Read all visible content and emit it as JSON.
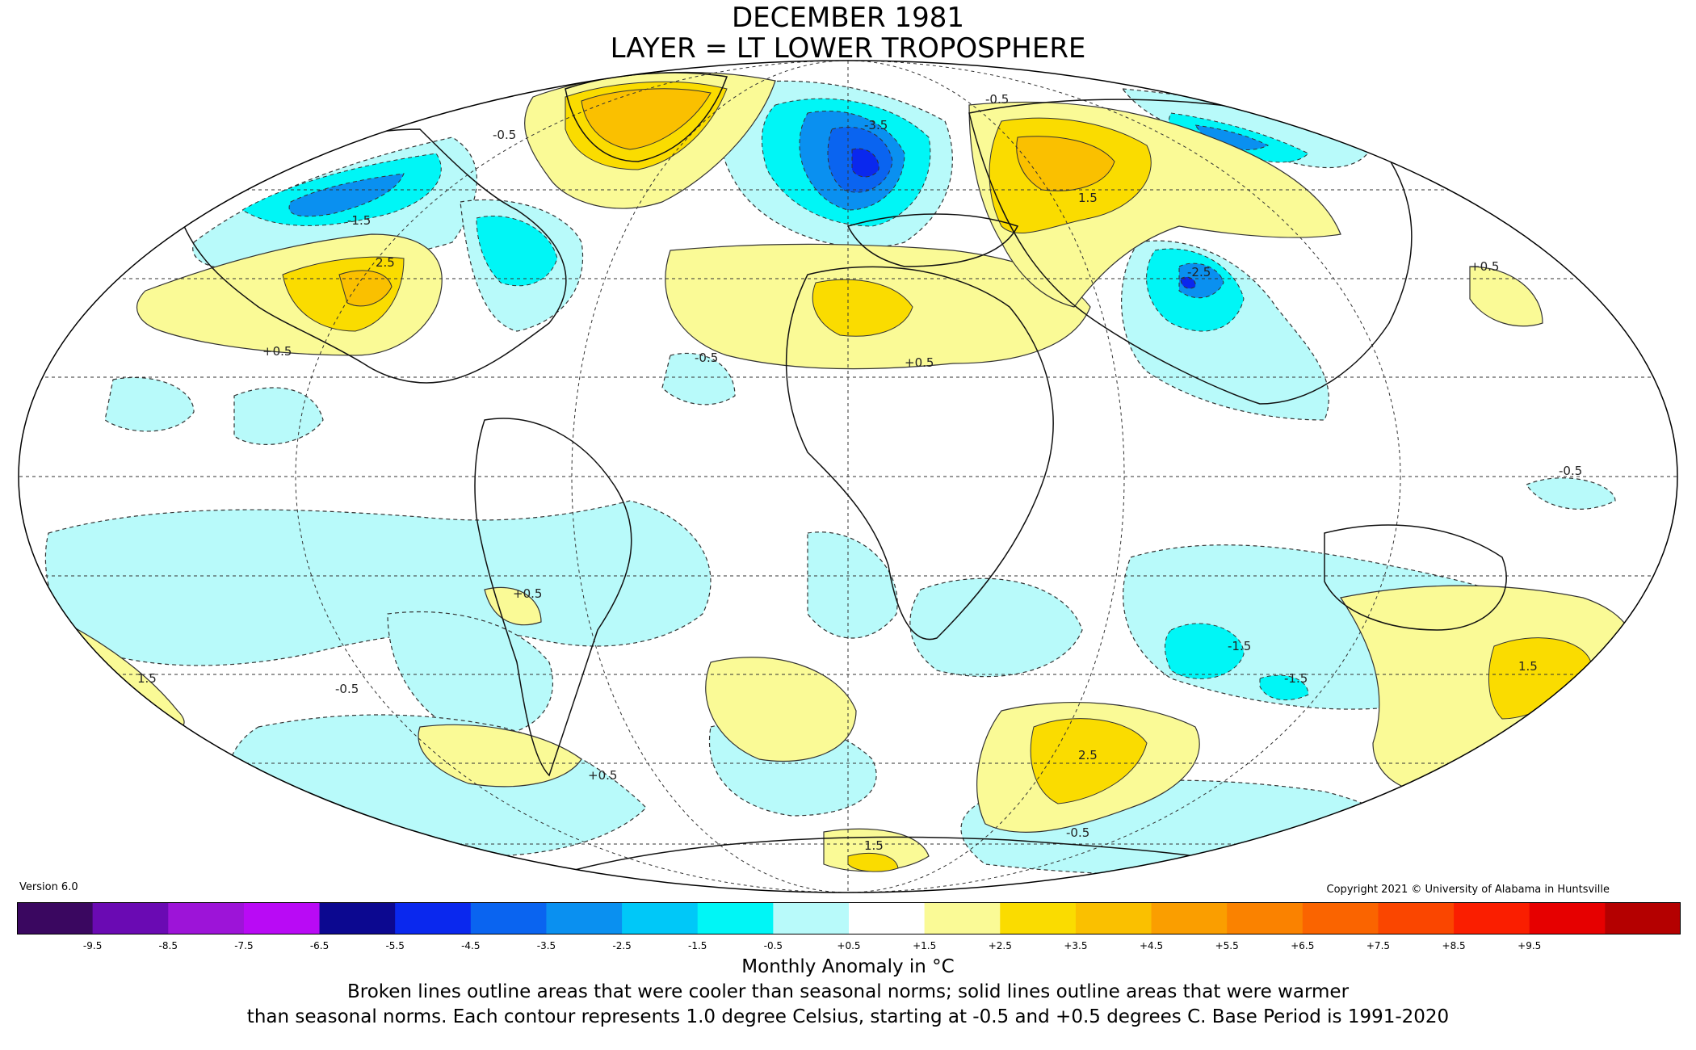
{
  "title_line1": "DECEMBER 1981",
  "title_line2": "LAYER = LT LOWER TROPOSPHERE",
  "version": "Version 6.0",
  "copyright": "Copyright 2021 © University of Alabama in Huntsville",
  "colorbar": {
    "ticks": [
      "-9.5",
      "-8.5",
      "-7.5",
      "-6.5",
      "-5.5",
      "-4.5",
      "-3.5",
      "-2.5",
      "-1.5",
      "-0.5",
      "+0.5",
      "+1.5",
      "+2.5",
      "+3.5",
      "+4.5",
      "+5.5",
      "+6.5",
      "+7.5",
      "+8.5",
      "+9.5"
    ],
    "colors": [
      "#3a0760",
      "#6a0ab3",
      "#9d14d8",
      "#b90af5",
      "#0c0890",
      "#0a28ee",
      "#0a64f0",
      "#0a90f0",
      "#00c8f8",
      "#00f6f6",
      "#b8fafa",
      "#ffffff",
      "#fafa96",
      "#fadc00",
      "#fac000",
      "#fa9e00",
      "#fa8200",
      "#fa6400",
      "#fa4600",
      "#fa1e00",
      "#e60000",
      "#b40000"
    ],
    "xlabel": "Monthly Anomaly in °C"
  },
  "caption_line1": "Broken lines outline areas that were cooler than seasonal norms; solid lines outline areas that were warmer",
  "caption_line2": "than seasonal norms. Each contour represents 1.0 degree Celsius, starting at -0.5 and +0.5 degrees C. Base Period is 1991-2020",
  "contour_labels": [
    "-0.5",
    "+0.5",
    "1.5",
    "-1.5",
    "2.5",
    "-2.5",
    "-3.5"
  ]
}
